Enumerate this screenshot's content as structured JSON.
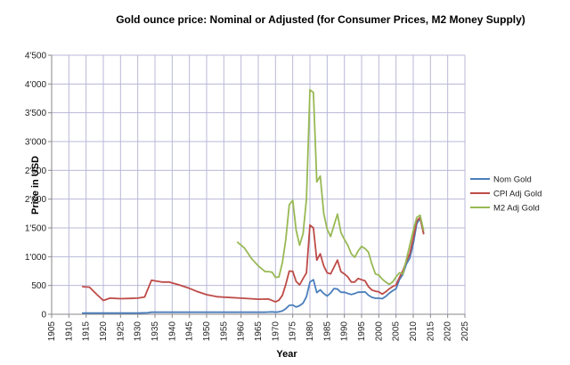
{
  "chart_data": {
    "type": "line",
    "title": "Gold ounce price: Nominal or Adjusted (for Consumer Prices, M2  Money Supply)",
    "xlabel": "Year",
    "ylabel": "Price in USD",
    "xlim": [
      1905,
      2025
    ],
    "ylim": [
      0,
      4500
    ],
    "x_ticks": [
      1905,
      1910,
      1915,
      1920,
      1925,
      1930,
      1935,
      1940,
      1945,
      1950,
      1955,
      1960,
      1965,
      1970,
      1975,
      1980,
      1985,
      1990,
      1995,
      2000,
      2005,
      2010,
      2015,
      2020,
      2025
    ],
    "y_ticks": [
      0,
      500,
      1000,
      1500,
      2000,
      2500,
      3000,
      3500,
      4000,
      4500
    ],
    "y_tick_labels": [
      "0",
      "500",
      "1'000",
      "1'500",
      "2'000",
      "2'500",
      "3'000",
      "3'500",
      "4'000",
      "4'500"
    ],
    "grid": true,
    "legend_position": "right",
    "colors": {
      "nominal": "#4a7ebb",
      "cpi": "#be4b48",
      "m2": "#98b954",
      "grid": "#b8b8d8",
      "axis": "#888888"
    },
    "series": [
      {
        "name": "Nom Gold",
        "color_key": "nominal",
        "x": [
          1914,
          1920,
          1925,
          1930,
          1933,
          1934,
          1940,
          1950,
          1960,
          1965,
          1967,
          1968,
          1969,
          1970,
          1971,
          1972,
          1973,
          1974,
          1975,
          1976,
          1977,
          1978,
          1979,
          1980,
          1981,
          1982,
          1983,
          1984,
          1985,
          1986,
          1987,
          1988,
          1989,
          1990,
          1991,
          1992,
          1993,
          1994,
          1995,
          1996,
          1997,
          1998,
          1999,
          2000,
          2001,
          2002,
          2003,
          2004,
          2005,
          2006,
          2007,
          2008,
          2009,
          2010,
          2011,
          2012,
          2013
        ],
        "y": [
          20.67,
          20.67,
          20.67,
          20.67,
          26,
          35,
          35,
          35,
          35,
          35,
          35,
          39,
          41,
          36,
          41,
          58,
          97,
          154,
          161,
          125,
          148,
          193,
          306,
          560,
          600,
          376,
          424,
          361,
          317,
          368,
          447,
          437,
          381,
          383,
          362,
          344,
          360,
          384,
          384,
          388,
          331,
          294,
          279,
          279,
          271,
          310,
          363,
          409,
          444,
          603,
          695,
          872,
          972,
          1224,
          1570,
          1669,
          1411
        ]
      },
      {
        "name": "CPI Adj Gold",
        "color_key": "cpi",
        "x": [
          1914,
          1916,
          1918,
          1920,
          1922,
          1925,
          1928,
          1930,
          1932,
          1934,
          1935,
          1937,
          1939,
          1942,
          1945,
          1947,
          1950,
          1953,
          1960,
          1965,
          1968,
          1970,
          1971,
          1972,
          1973,
          1974,
          1975,
          1976,
          1977,
          1978,
          1979,
          1980,
          1981,
          1982,
          1983,
          1984,
          1985,
          1986,
          1987,
          1988,
          1989,
          1990,
          1991,
          1992,
          1993,
          1994,
          1995,
          1996,
          1997,
          1998,
          1999,
          2000,
          2001,
          2002,
          2003,
          2004,
          2005,
          2006,
          2007,
          2008,
          2009,
          2010,
          2011,
          2012,
          2013
        ],
        "y": [
          480,
          470,
          350,
          240,
          280,
          270,
          275,
          280,
          300,
          590,
          580,
          560,
          560,
          510,
          450,
          400,
          340,
          305,
          280,
          262,
          265,
          215,
          245,
          330,
          520,
          750,
          745,
          570,
          510,
          620,
          720,
          1550,
          1500,
          940,
          1050,
          840,
          720,
          700,
          820,
          940,
          740,
          700,
          650,
          560,
          560,
          620,
          600,
          580,
          480,
          420,
          400,
          390,
          350,
          390,
          440,
          480,
          510,
          640,
          760,
          920,
          1050,
          1320,
          1620,
          1680,
          1400
        ]
      },
      {
        "name": "M2 Adj Gold",
        "color_key": "m2",
        "x": [
          1959,
          1961,
          1963,
          1965,
          1967,
          1968,
          1969,
          1970,
          1971,
          1972,
          1973,
          1974,
          1975,
          1976,
          1977,
          1978,
          1979,
          1980,
          1981,
          1982,
          1983,
          1984,
          1985,
          1986,
          1987,
          1988,
          1989,
          1990,
          1991,
          1992,
          1993,
          1994,
          1995,
          1996,
          1997,
          1998,
          1999,
          2000,
          2001,
          2002,
          2003,
          2004,
          2005,
          2006,
          2007,
          2008,
          2009,
          2010,
          2011,
          2012,
          2013
        ],
        "y": [
          1250,
          1150,
          970,
          840,
          740,
          740,
          730,
          640,
          650,
          900,
          1300,
          1900,
          1980,
          1460,
          1200,
          1400,
          2000,
          3900,
          3850,
          2300,
          2400,
          1750,
          1480,
          1350,
          1550,
          1740,
          1420,
          1300,
          1200,
          1050,
          990,
          1100,
          1180,
          1140,
          1080,
          870,
          700,
          680,
          610,
          560,
          520,
          560,
          650,
          720,
          700,
          950,
          1200,
          1450,
          1680,
          1720,
          1460
        ]
      }
    ]
  }
}
